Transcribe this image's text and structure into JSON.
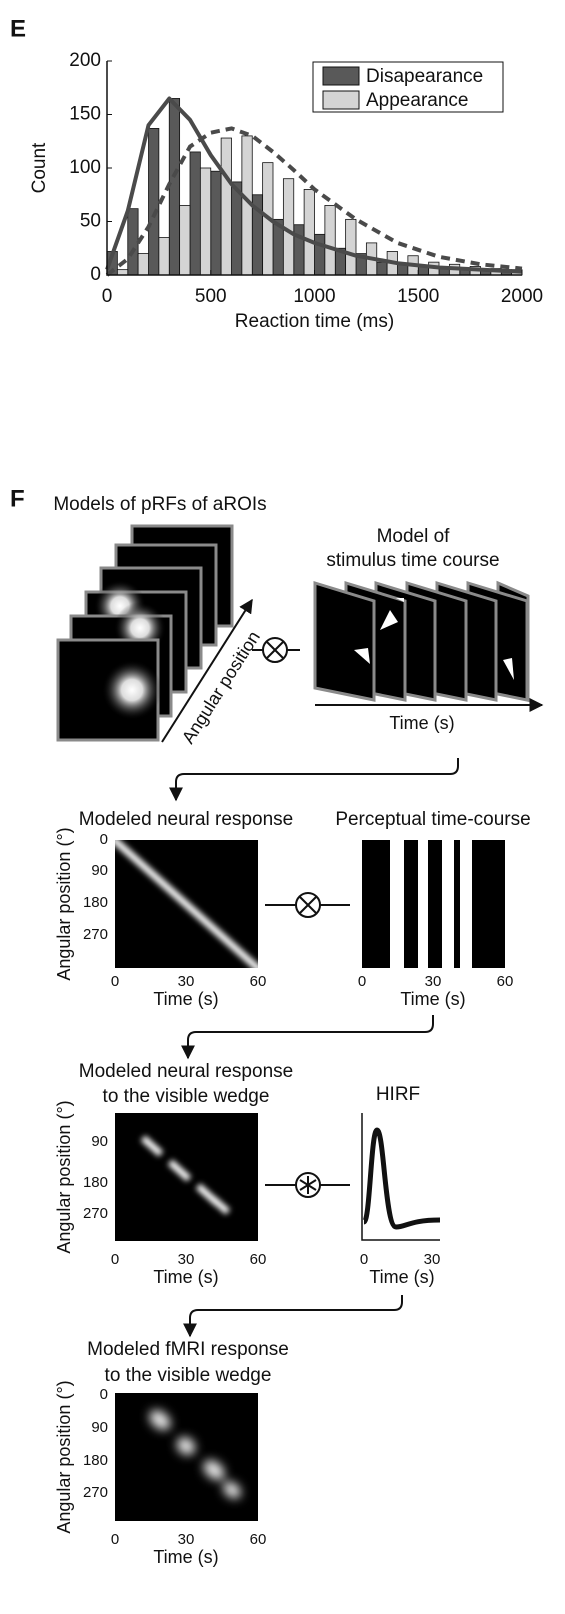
{
  "chart_data": {
    "type": "histogram",
    "panel_label": "E",
    "xlabel": "Reaction time (ms)",
    "ylabel": "Count",
    "bins": [
      0,
      100,
      200,
      300,
      400,
      500,
      600,
      700,
      800,
      900,
      1000,
      1100,
      1200,
      1300,
      1400,
      1500,
      1600,
      1700,
      1800,
      1900,
      2000
    ],
    "xlim": [
      0,
      2000
    ],
    "xticks": [
      0,
      500,
      1000,
      1500,
      2000
    ],
    "ylim": [
      0,
      200
    ],
    "yticks": [
      0,
      50,
      100,
      150,
      200
    ],
    "legend": "upper right",
    "series": [
      {
        "name": "Disapearance",
        "color": "#595959",
        "values": [
          22,
          62,
          137,
          165,
          115,
          97,
          87,
          75,
          52,
          47,
          38,
          25,
          20,
          12,
          10,
          8,
          7,
          6,
          5,
          5
        ]
      },
      {
        "name": "Appearance",
        "color": "#d4d4d4",
        "values": [
          5,
          20,
          35,
          65,
          100,
          128,
          130,
          105,
          90,
          80,
          65,
          52,
          30,
          22,
          18,
          12,
          10,
          8,
          6,
          5
        ]
      }
    ],
    "fits": [
      {
        "color": "#4a4a4a",
        "style": "solid",
        "x": [
          0,
          100,
          200,
          300,
          400,
          500,
          600,
          700,
          800,
          900,
          1000,
          1200,
          1400,
          1600,
          1800,
          2000
        ],
        "values": [
          5,
          60,
          140,
          165,
          145,
          112,
          85,
          65,
          50,
          38,
          30,
          18,
          11,
          7,
          5,
          3
        ]
      },
      {
        "color": "#4a4a4a",
        "style": "dashed",
        "x": [
          0,
          100,
          200,
          300,
          400,
          500,
          600,
          700,
          800,
          900,
          1000,
          1200,
          1400,
          1600,
          1800,
          2000
        ],
        "values": [
          0,
          15,
          45,
          85,
          120,
          133,
          137,
          130,
          115,
          98,
          80,
          52,
          30,
          17,
          10,
          6
        ]
      }
    ]
  },
  "diagram": {
    "label": "F",
    "prf": {
      "title": "Models of pRFs of aROIs",
      "axis": "Angular position"
    },
    "stimulus": {
      "title": [
        "Model of",
        "stimulus time course"
      ],
      "axis": "Time (s)"
    },
    "panels": [
      {
        "title": [
          "Modeled neural response"
        ],
        "ylabel": "Angular position (°)",
        "yticks": [
          0,
          90,
          180,
          270
        ],
        "xticks": [
          0,
          30,
          60
        ],
        "xlabel": "Time (s)"
      },
      {
        "title": [
          "Perceptual time-course"
        ],
        "xticks": [
          0,
          30,
          60
        ],
        "xlabel": "Time (s)"
      },
      {
        "title": [
          "Modeled neural response",
          "to the visible wedge"
        ],
        "ylabel": "Angular position (°)",
        "yticks": [
          90,
          180,
          270
        ],
        "xticks": [
          0,
          30,
          60
        ],
        "xlabel": "Time (s)"
      },
      {
        "title": [
          "HIRF"
        ],
        "xticks": [
          0,
          30
        ],
        "xlabel": "Time (s)"
      },
      {
        "title": [
          "Modeled fMRI response",
          "to the visible wedge"
        ],
        "ylabel": "Angular position (°)",
        "yticks": [
          0,
          90,
          180,
          270
        ],
        "xticks": [
          0,
          30,
          60
        ],
        "xlabel": "Time (s)"
      }
    ]
  }
}
